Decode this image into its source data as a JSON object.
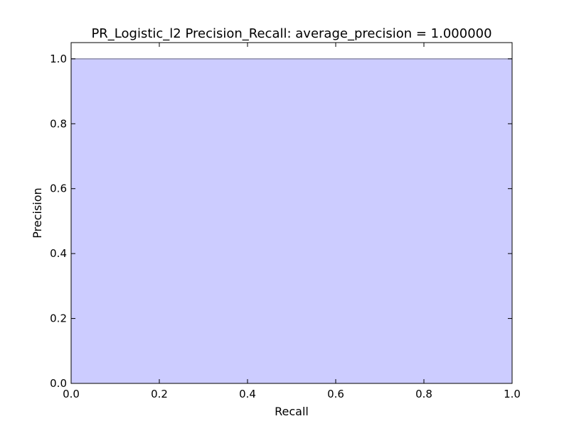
{
  "chart_data": {
    "type": "area",
    "title": "PR_Logistic_l2 Precision_Recall: average_precision = 1.000000",
    "xlabel": "Recall",
    "ylabel": "Precision",
    "xlim": [
      0.0,
      1.0
    ],
    "ylim": [
      0.0,
      1.05
    ],
    "xticks": [
      "0.0",
      "0.2",
      "0.4",
      "0.6",
      "0.8",
      "1.0"
    ],
    "yticks": [
      "0.0",
      "0.2",
      "0.4",
      "0.6",
      "0.8",
      "1.0"
    ],
    "grid": false,
    "series": [
      {
        "x": [
          0.0,
          1.0
        ],
        "y": [
          1.0,
          1.0
        ]
      }
    ],
    "colors": {
      "fill": "#ccccff",
      "line": "#8c8ca8",
      "axes": "#000000"
    }
  }
}
